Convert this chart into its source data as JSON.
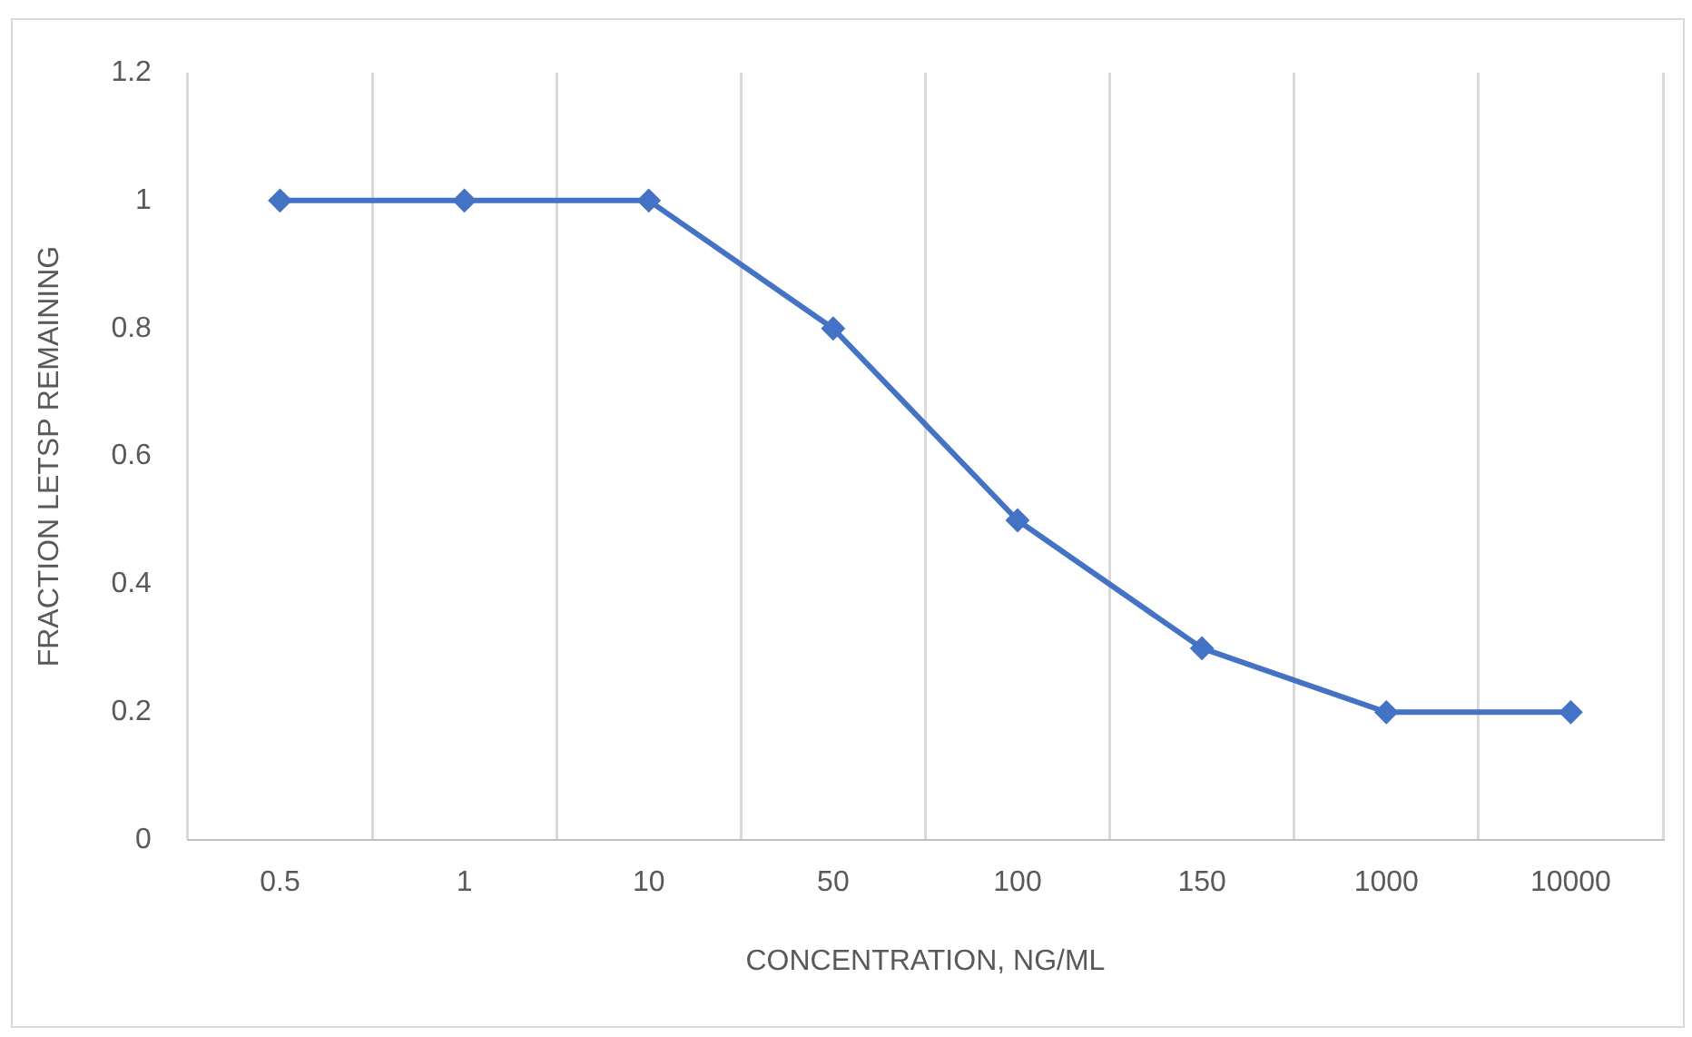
{
  "chart_data": {
    "type": "line",
    "xlabel": "CONCENTRATION, NG/ML",
    "ylabel": "FRACTION LETSP REMAINING",
    "categories": [
      "0.5",
      "1",
      "10",
      "50",
      "100",
      "150",
      "1000",
      "10000"
    ],
    "series": [
      {
        "color": "#4472c4",
        "values": [
          1,
          1,
          1,
          0.8,
          0.5,
          0.3,
          0.2,
          0.2
        ]
      }
    ],
    "ylim": [
      0,
      1.2
    ],
    "yticks": [
      0,
      0.2,
      0.4,
      0.6,
      0.8,
      1,
      1.2
    ],
    "grid": "x",
    "legend": false,
    "marker": "diamond",
    "line_style": "solid"
  }
}
